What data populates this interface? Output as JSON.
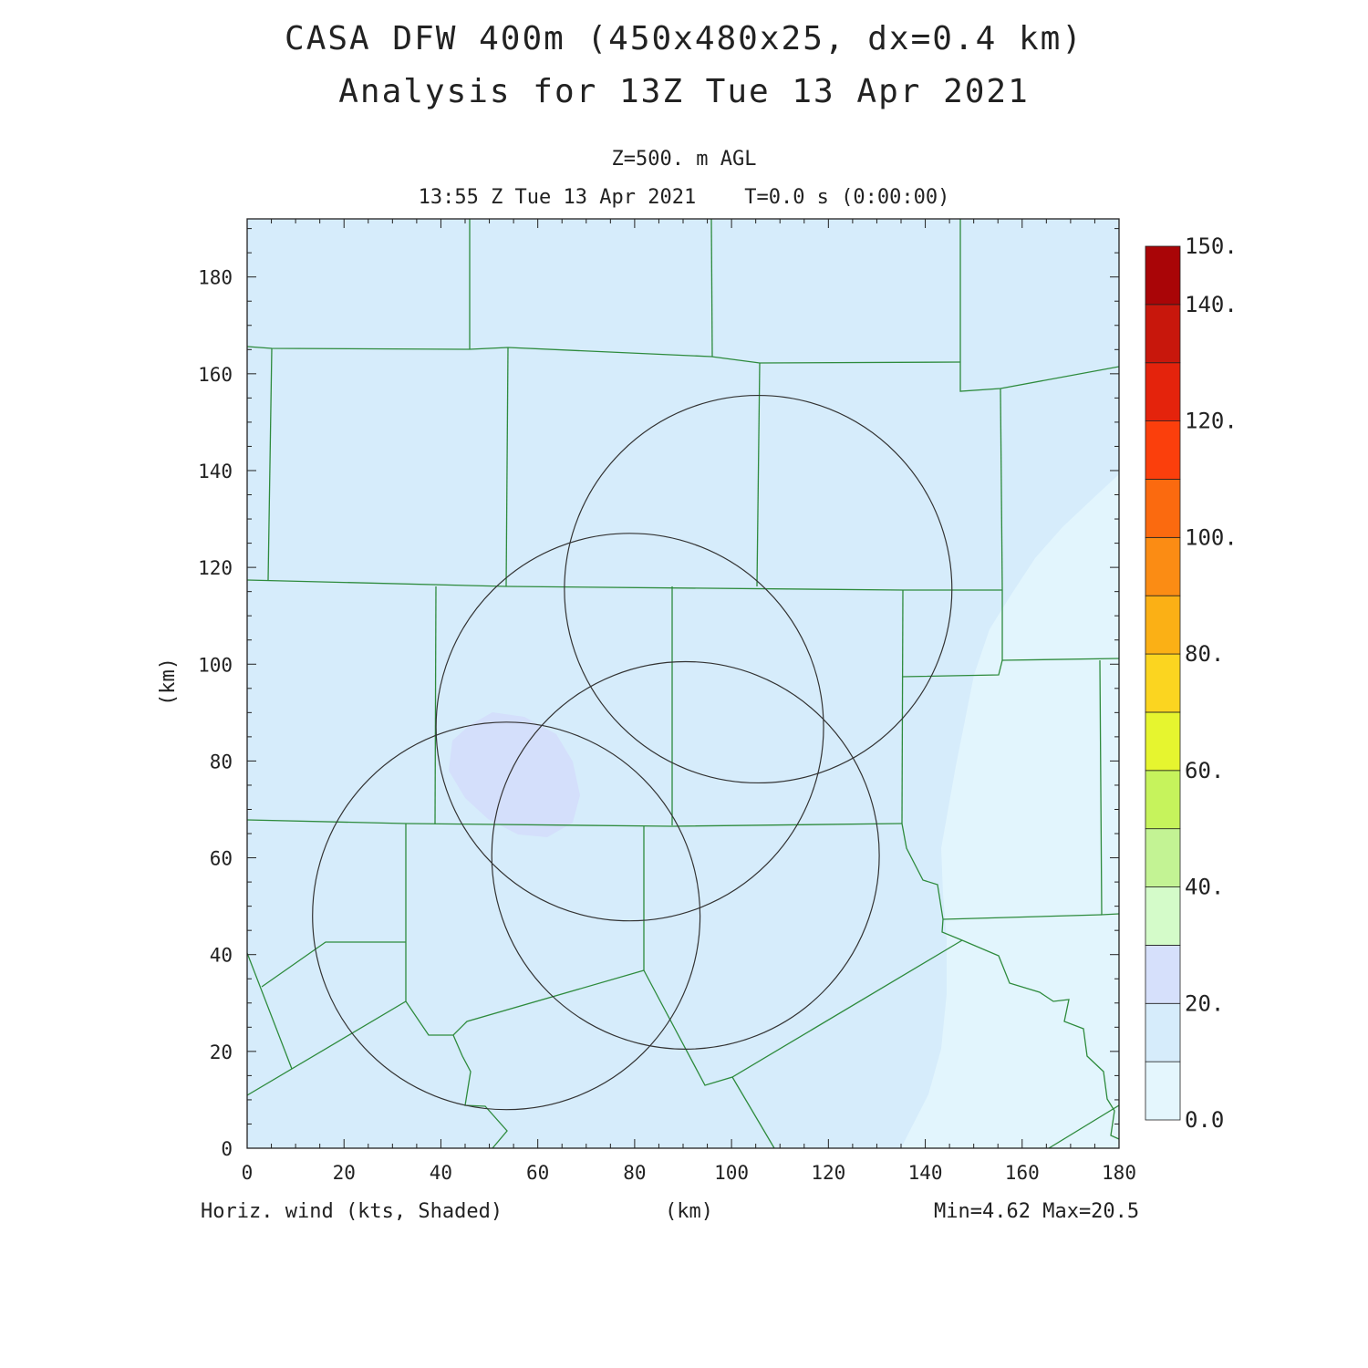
{
  "header": {
    "title_line1": "CASA DFW 400m (450x480x25, dx=0.4 km)",
    "title_line2": "Analysis for 13Z Tue 13 Apr 2021",
    "level": "Z=500. m AGL",
    "valid_time": "13:55 Z Tue 13 Apr 2021    T=0.0 s (0:00:00)"
  },
  "footer": {
    "variable": "Horiz. wind (kts, Shaded)",
    "x_unit": "(km)",
    "minmax": "Min=4.62 Max=20.5"
  },
  "axes": {
    "y_unit": "(km)",
    "x_ticks": [
      "0",
      "20",
      "40",
      "60",
      "80",
      "100",
      "120",
      "140",
      "160",
      "180"
    ],
    "y_ticks": [
      "0",
      "20",
      "40",
      "60",
      "80",
      "100",
      "120",
      "140",
      "160",
      "180"
    ]
  },
  "colors": {
    "county_lines": "#2e8b3d",
    "radar_rings": "#333333",
    "shade_0_10": "#e2f5fd",
    "shade_10_20": "#d6ecfb",
    "shade_20_30": "#d4dffb"
  },
  "colorbar": {
    "labels": [
      "0.0",
      "20.",
      "40.",
      "60.",
      "80.",
      "100.",
      "120.",
      "140.",
      "150."
    ],
    "colors": [
      "#e4f6fd",
      "#d6ecfb",
      "#d6e0fb",
      "#d4fbc9",
      "#c3f394",
      "#c6f35c",
      "#e6f52f",
      "#fbd520",
      "#fbb015",
      "#fb8c14",
      "#fb6a0f",
      "#fb3f0c",
      "#e4230c",
      "#c8170c",
      "#a90507"
    ]
  },
  "chart_data": {
    "type": "heatmap",
    "title": "CASA DFW 400m (450x480x25, dx=0.4 km)",
    "xlabel": "(km)",
    "ylabel": "(km)",
    "xlim": [
      0,
      180
    ],
    "ylim": [
      0,
      192
    ],
    "field": "Horiz. wind (kts, Shaded)",
    "min": 4.62,
    "max": 20.5,
    "contour_levels": [
      0,
      10,
      20,
      30,
      40,
      50,
      60,
      70,
      80,
      90,
      100,
      110,
      120,
      130,
      140,
      150
    ],
    "radar_rings": [
      {
        "center_x": 105.5,
        "center_y": 115.5,
        "radius": 40
      },
      {
        "center_x": 79,
        "center_y": 87,
        "radius": 40
      },
      {
        "center_x": 90.5,
        "center_y": 60.5,
        "radius": 40
      },
      {
        "center_x": 53.5,
        "center_y": 48,
        "radius": 40
      }
    ]
  }
}
